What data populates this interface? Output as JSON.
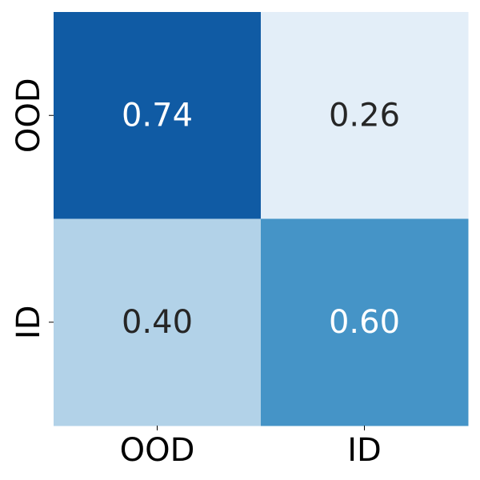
{
  "chart_data": {
    "type": "heatmap",
    "title": "",
    "xlabel": "",
    "ylabel": "",
    "x_categories": [
      "OOD",
      "ID"
    ],
    "y_categories": [
      "OOD",
      "ID"
    ],
    "values": [
      [
        0.74,
        0.26
      ],
      [
        0.4,
        0.6
      ]
    ],
    "value_labels": [
      [
        "0.74",
        "0.26"
      ],
      [
        "0.40",
        "0.60"
      ]
    ],
    "colorbar": false,
    "grid": false,
    "colors": {
      "cells": [
        [
          "#105ba4",
          "#e3eef8"
        ],
        [
          "#b2d2e8",
          "#4594c7"
        ]
      ],
      "text": [
        [
          "#ffffff",
          "#262626"
        ],
        [
          "#262626",
          "#ffffff"
        ]
      ],
      "tick_text": "#000000"
    }
  }
}
